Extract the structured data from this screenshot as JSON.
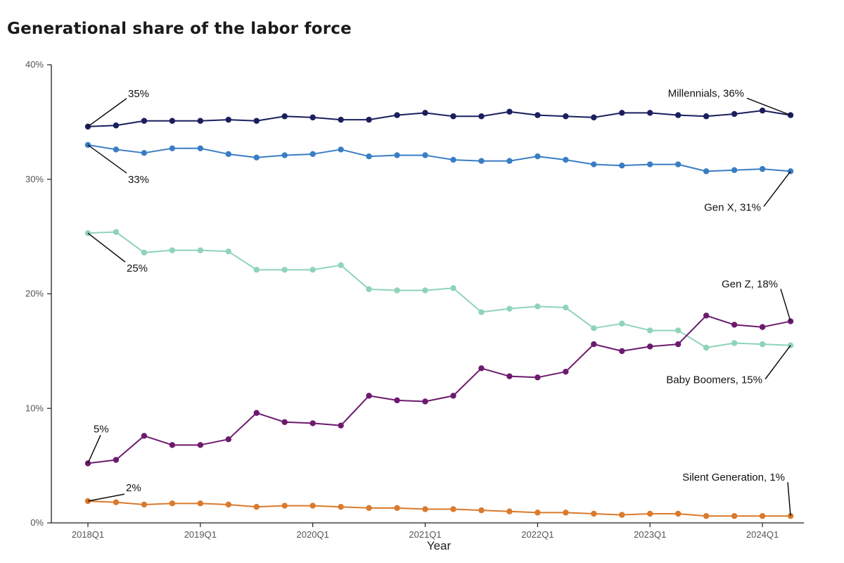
{
  "chart_data": {
    "type": "line",
    "title": "Generational share of the labor force",
    "xlabel": "Year",
    "ylabel": "",
    "ylim": [
      0,
      40
    ],
    "yticks": [
      0,
      10,
      20,
      30,
      40
    ],
    "ytick_labels": [
      "0%",
      "10%",
      "20%",
      "30%",
      "40%"
    ],
    "x_index_range": [
      0,
      25
    ],
    "xticks": [
      {
        "index": 0,
        "label": "2018Q1"
      },
      {
        "index": 4,
        "label": "2019Q1"
      },
      {
        "index": 8,
        "label": "2020Q1"
      },
      {
        "index": 12,
        "label": "2021Q1"
      },
      {
        "index": 16,
        "label": "2022Q1"
      },
      {
        "index": 20,
        "label": "2023Q1"
      },
      {
        "index": 24,
        "label": "2024Q1"
      }
    ],
    "series": [
      {
        "name": "Millennials",
        "color": "#1b1f5e",
        "values": [
          34.6,
          34.7,
          35.1,
          35.1,
          35.1,
          35.2,
          35.1,
          35.5,
          35.4,
          35.2,
          35.2,
          35.6,
          35.8,
          35.5,
          35.5,
          35.9,
          35.6,
          35.5,
          35.4,
          35.8,
          35.8,
          35.6,
          35.5,
          35.7,
          36.0,
          35.6
        ]
      },
      {
        "name": "Gen X",
        "color": "#3a7dc4",
        "values": [
          33.0,
          32.6,
          32.3,
          32.7,
          32.7,
          32.2,
          31.9,
          32.1,
          32.2,
          32.6,
          32.0,
          32.1,
          32.1,
          31.7,
          31.6,
          31.6,
          32.0,
          31.7,
          31.3,
          31.2,
          31.3,
          31.3,
          30.7,
          30.8,
          30.9,
          30.7
        ]
      },
      {
        "name": "Baby Boomers",
        "color": "#8fd4b8",
        "values": [
          25.3,
          25.4,
          23.6,
          23.8,
          23.8,
          23.7,
          22.1,
          22.1,
          22.1,
          22.5,
          20.4,
          20.3,
          20.3,
          20.5,
          18.4,
          18.7,
          18.9,
          18.8,
          17.0,
          17.4,
          16.8,
          16.8,
          15.3,
          15.7,
          15.6,
          15.5
        ]
      },
      {
        "name": "Gen Z",
        "color": "#6d1a6e",
        "values": [
          5.2,
          5.5,
          7.6,
          6.8,
          6.8,
          7.3,
          9.6,
          8.8,
          8.7,
          8.5,
          11.1,
          10.7,
          10.6,
          11.1,
          13.5,
          12.8,
          12.7,
          13.2,
          15.6,
          15.0,
          15.4,
          15.6,
          18.1,
          17.3,
          17.1,
          17.6
        ]
      },
      {
        "name": "Silent Generation",
        "color": "#d97a2c",
        "values": [
          1.9,
          1.8,
          1.6,
          1.7,
          1.7,
          1.6,
          1.4,
          1.5,
          1.5,
          1.4,
          1.3,
          1.3,
          1.2,
          1.2,
          1.1,
          1.0,
          0.9,
          0.9,
          0.8,
          0.7,
          0.8,
          0.8,
          0.6,
          0.6,
          0.6,
          0.6
        ]
      }
    ],
    "annotations": [
      {
        "text": "35%",
        "series": "Millennials",
        "point": "start",
        "placement": "above-right"
      },
      {
        "text": "33%",
        "series": "Gen X",
        "point": "start",
        "placement": "below-right"
      },
      {
        "text": "25%",
        "series": "Baby Boomers",
        "point": "start",
        "placement": "below-right"
      },
      {
        "text": "5%",
        "series": "Gen Z",
        "point": "start",
        "placement": "above"
      },
      {
        "text": "2%",
        "series": "Silent Generation",
        "point": "start",
        "placement": "above-right"
      },
      {
        "text": "Millennials, 36%",
        "series": "Millennials",
        "point": "end",
        "placement": "above-left"
      },
      {
        "text": "Gen X, 31%",
        "series": "Gen X",
        "point": "end",
        "placement": "below-left"
      },
      {
        "text": "Gen Z, 18%",
        "series": "Gen Z",
        "point": "end",
        "placement": "above-left"
      },
      {
        "text": "Baby Boomers, 15%",
        "series": "Baby Boomers",
        "point": "end",
        "placement": "below-left"
      },
      {
        "text": "Silent Generation, 1%",
        "series": "Silent Generation",
        "point": "end",
        "placement": "above-left"
      }
    ]
  }
}
